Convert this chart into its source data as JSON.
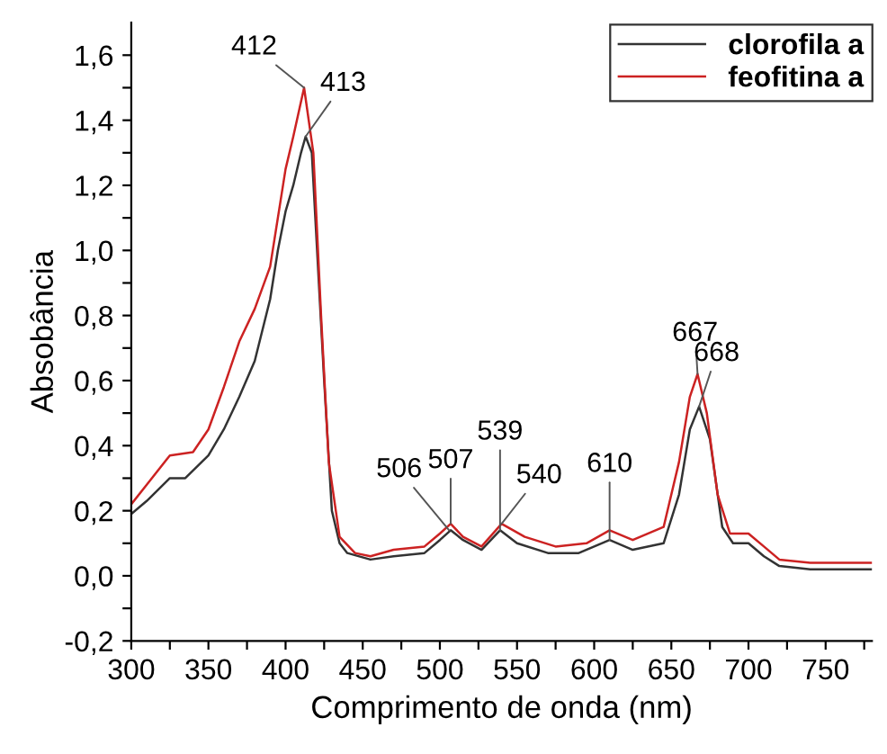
{
  "chart_data": {
    "type": "line",
    "xlabel": "Comprimento de onda (nm)",
    "ylabel": "Absobância",
    "xlim": [
      300,
      780
    ],
    "ylim": [
      -0.2,
      1.7
    ],
    "xticks": [
      300,
      {
        "value": 325,
        "label": null
      },
      350,
      {
        "value": 375,
        "label": null
      },
      400,
      {
        "value": 425,
        "label": null
      },
      450,
      {
        "value": 475,
        "label": null
      },
      500,
      {
        "value": 525,
        "label": null
      },
      550,
      {
        "value": 575,
        "label": null
      },
      600,
      {
        "value": 625,
        "label": null
      },
      650,
      {
        "value": 675,
        "label": null
      },
      700,
      {
        "value": 725,
        "label": null
      },
      750,
      {
        "value": 775,
        "label": null
      }
    ],
    "yticks": [
      {
        "value": -0.2,
        "label": "-0,2"
      },
      {
        "value": -0.1,
        "label": null
      },
      {
        "value": 0.0,
        "label": "0,0"
      },
      {
        "value": 0.1,
        "label": null
      },
      {
        "value": 0.2,
        "label": "0,2"
      },
      {
        "value": 0.3,
        "label": null
      },
      {
        "value": 0.4,
        "label": "0,4"
      },
      {
        "value": 0.5,
        "label": null
      },
      {
        "value": 0.6,
        "label": "0,6"
      },
      {
        "value": 0.7,
        "label": null
      },
      {
        "value": 0.8,
        "label": "0,8"
      },
      {
        "value": 0.9,
        "label": null
      },
      {
        "value": 1.0,
        "label": "1,0"
      },
      {
        "value": 1.1,
        "label": null
      },
      {
        "value": 1.2,
        "label": "1,2"
      },
      {
        "value": 1.3,
        "label": null
      },
      {
        "value": 1.4,
        "label": "1,4"
      },
      {
        "value": 1.5,
        "label": null
      },
      {
        "value": 1.6,
        "label": "1,6"
      }
    ],
    "grid": false,
    "legend": "top right",
    "marker": "none",
    "line_style": "solid",
    "series": [
      {
        "name": "clorofila a",
        "color": "#333333",
        "x": [
          300,
          310,
          325,
          335,
          350,
          360,
          370,
          380,
          390,
          395,
          400,
          405,
          410,
          413,
          417,
          425,
          430,
          435,
          440,
          455,
          470,
          490,
          500,
          507,
          515,
          527,
          539,
          550,
          570,
          590,
          600,
          610,
          625,
          645,
          655,
          662,
          668,
          675,
          683,
          690,
          700,
          710,
          720,
          740,
          780
        ],
        "values": [
          0.19,
          0.23,
          0.3,
          0.3,
          0.37,
          0.45,
          0.55,
          0.66,
          0.85,
          1.0,
          1.12,
          1.2,
          1.3,
          1.35,
          1.3,
          0.6,
          0.2,
          0.1,
          0.07,
          0.05,
          0.06,
          0.07,
          0.11,
          0.14,
          0.11,
          0.08,
          0.14,
          0.1,
          0.07,
          0.07,
          0.09,
          0.11,
          0.08,
          0.1,
          0.25,
          0.45,
          0.52,
          0.42,
          0.15,
          0.1,
          0.1,
          0.06,
          0.03,
          0.02,
          0.02
        ]
      },
      {
        "name": "feofitina a",
        "color": "#cc2222",
        "x": [
          300,
          310,
          325,
          340,
          350,
          360,
          370,
          380,
          390,
          395,
          400,
          405,
          412,
          418,
          423,
          428,
          435,
          445,
          455,
          470,
          490,
          500,
          507,
          515,
          527,
          540,
          555,
          575,
          595,
          610,
          625,
          645,
          655,
          662,
          667,
          673,
          680,
          688,
          700,
          710,
          720,
          740,
          780
        ],
        "values": [
          0.22,
          0.28,
          0.37,
          0.38,
          0.45,
          0.58,
          0.72,
          0.82,
          0.95,
          1.1,
          1.25,
          1.35,
          1.5,
          1.3,
          0.8,
          0.35,
          0.12,
          0.07,
          0.06,
          0.08,
          0.09,
          0.13,
          0.16,
          0.12,
          0.09,
          0.16,
          0.12,
          0.09,
          0.1,
          0.14,
          0.11,
          0.15,
          0.35,
          0.55,
          0.62,
          0.5,
          0.25,
          0.13,
          0.13,
          0.09,
          0.05,
          0.04,
          0.04
        ]
      }
    ],
    "annotations": [
      {
        "text": "412",
        "x": 412,
        "y": 1.5
      },
      {
        "text": "413",
        "x": 413,
        "y": 1.35
      },
      {
        "text": "506",
        "x": 506,
        "y": 0.14
      },
      {
        "text": "507",
        "x": 507,
        "y": 0.16
      },
      {
        "text": "539",
        "x": 539,
        "y": 0.14
      },
      {
        "text": "540",
        "x": 540,
        "y": 0.16
      },
      {
        "text": "610",
        "x": 610,
        "y": 0.11
      },
      {
        "text": "667",
        "x": 667,
        "y": 0.62
      },
      {
        "text": "668",
        "x": 668,
        "y": 0.52
      }
    ]
  }
}
